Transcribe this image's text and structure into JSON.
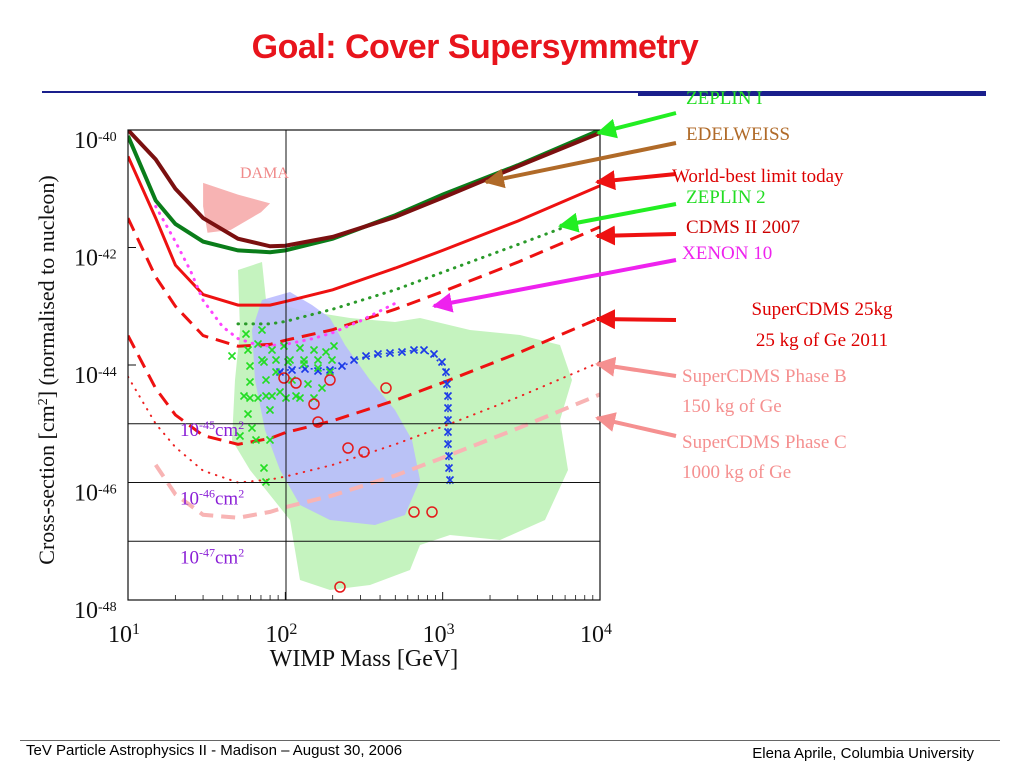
{
  "slide": {
    "title": "Goal: Cover Supersymmetry",
    "footer_left": "TeV Particle Astrophysics II - Madison –  August 30,  2006",
    "footer_right": "Elena Aprile, Columbia University"
  },
  "chart_data": {
    "type": "line",
    "xlabel": "WIMP Mass [GeV]",
    "ylabel_parts": [
      "Cross-section [cm",
      "2",
      "] (normalised to nucleon)"
    ],
    "x_scale": "log",
    "y_scale": "log",
    "xlim": [
      10,
      10000
    ],
    "ylim": [
      1e-48,
      1e-40
    ],
    "x_ticks": [
      {
        "value": 10,
        "base": "10",
        "exp": "1"
      },
      {
        "value": 100,
        "base": "10",
        "exp": "2"
      },
      {
        "value": 1000,
        "base": "10",
        "exp": "3"
      },
      {
        "value": 10000,
        "base": "10",
        "exp": "4"
      }
    ],
    "y_ticks": [
      {
        "value": 1e-40,
        "base": "10",
        "exp": "-40"
      },
      {
        "value": 1e-42,
        "base": "10",
        "exp": "-42"
      },
      {
        "value": 1e-44,
        "base": "10",
        "exp": "-44"
      },
      {
        "value": 1e-46,
        "base": "10",
        "exp": "-46"
      },
      {
        "value": 1e-48,
        "base": "10",
        "exp": "-48"
      }
    ],
    "series": [
      {
        "name": "ZEPLIN I",
        "color": "#0a7d1a",
        "label_color": "#22dd22",
        "style": "solid",
        "width": 4,
        "x": [
          10,
          15,
          20,
          30,
          50,
          80,
          100,
          200,
          500,
          1000,
          3000,
          10000
        ],
        "y": [
          -40.1,
          -41.2,
          -41.6,
          -41.9,
          -42.05,
          -42.08,
          -42.05,
          -41.85,
          -41.45,
          -41.1,
          -40.6,
          -40.0
        ]
      },
      {
        "name": "EDELWEISS",
        "color": "#7b1010",
        "label_color": "#b06a28",
        "style": "solid",
        "width": 4,
        "x": [
          10,
          15,
          20,
          30,
          50,
          80,
          100,
          200,
          500,
          1000,
          3000,
          10000
        ],
        "y": [
          -40.0,
          -40.5,
          -41.0,
          -41.5,
          -41.85,
          -41.98,
          -41.97,
          -41.82,
          -41.48,
          -41.15,
          -40.62,
          -40.05
        ]
      },
      {
        "name": "World-best limit today",
        "color": "#ee1111",
        "label_color": "#dd0000",
        "style": "solid",
        "width": 3,
        "x": [
          10,
          15,
          20,
          30,
          50,
          80,
          100,
          200,
          500,
          1000,
          3000,
          10000
        ],
        "y": [
          -40.45,
          -41.5,
          -42.3,
          -42.8,
          -42.98,
          -42.98,
          -42.92,
          -42.72,
          -42.35,
          -42.05,
          -41.55,
          -40.95
        ]
      },
      {
        "name": "ZEPLIN 2",
        "color": "#2a9a2a",
        "label_color": "#22dd22",
        "style": "dotted",
        "width": 3,
        "x": [
          50,
          80,
          100,
          200,
          500,
          1000,
          3000,
          6000
        ],
        "y": [
          -43.3,
          -43.3,
          -43.26,
          -43.05,
          -42.72,
          -42.42,
          -41.95,
          -41.65
        ]
      },
      {
        "name": "CDMS II 2007",
        "color": "#ee1111",
        "label_color": "#cc0000",
        "style": "dashed",
        "width": 3,
        "x": [
          10,
          15,
          20,
          30,
          50,
          80,
          100,
          200,
          500,
          1000,
          3000,
          10000
        ],
        "y": [
          -41.5,
          -42.5,
          -43.0,
          -43.5,
          -43.68,
          -43.65,
          -43.58,
          -43.4,
          -43.05,
          -42.75,
          -42.25,
          -41.65
        ]
      },
      {
        "name": "XENON 10",
        "color": "#ff44ff",
        "label_color": "#ee22ee",
        "style": "dotted",
        "width": 3,
        "x": [
          15,
          20,
          25,
          30,
          40,
          50,
          70,
          100,
          150,
          200,
          300,
          500
        ],
        "y": [
          -41.3,
          -41.9,
          -42.4,
          -42.9,
          -43.35,
          -43.55,
          -43.68,
          -43.65,
          -43.55,
          -43.45,
          -43.25,
          -42.95
        ]
      },
      {
        "name": "SuperCDMS 25kg",
        "color": "#ee1111",
        "label_color": "#dd0000",
        "style": "dashed",
        "width": 3,
        "x": [
          10,
          15,
          20,
          30,
          50,
          80,
          100,
          200,
          500,
          1000,
          3000,
          10000
        ],
        "y": [
          -43.5,
          -44.4,
          -44.85,
          -45.2,
          -45.35,
          -45.25,
          -45.15,
          -44.95,
          -44.6,
          -44.3,
          -43.8,
          -43.2
        ]
      },
      {
        "name": "SuperCDMS Phase B",
        "color": "#ee2222",
        "label_color": "#f59090",
        "style": "dotted",
        "width": 2,
        "x": [
          10,
          15,
          20,
          30,
          50,
          80,
          100,
          200,
          500,
          1000,
          3000,
          10000
        ],
        "y": [
          -44.2,
          -45.0,
          -45.4,
          -45.8,
          -46.0,
          -45.95,
          -45.9,
          -45.7,
          -45.35,
          -45.05,
          -44.55,
          -43.95
        ]
      },
      {
        "name": "SuperCDMS Phase C",
        "color": "#f8b4b4",
        "label_color": "#f59090",
        "style": "dashed",
        "width": 4,
        "x": [
          15,
          20,
          30,
          50,
          80,
          100,
          200,
          500,
          1000,
          3000,
          10000
        ],
        "y": [
          -45.7,
          -46.2,
          -46.55,
          -46.6,
          -46.5,
          -46.42,
          -46.22,
          -45.88,
          -45.58,
          -45.08,
          -44.5
        ]
      }
    ],
    "regions": [
      {
        "name": "DAMA",
        "color": "#f6a6a6",
        "label_color": "#f08a8a",
        "x": [
          30,
          50,
          80,
          70,
          45,
          32,
          30
        ],
        "y": [
          -40.9,
          -41.1,
          -41.25,
          -41.4,
          -41.7,
          -41.75,
          -41.3
        ]
      }
    ],
    "reference_lines": [
      {
        "label_base": "10",
        "label_exp": "-45",
        "label_unit": "cm",
        "label_unit_exp": "2",
        "y": -45
      },
      {
        "label_base": "10",
        "label_exp": "-46",
        "label_unit": "cm",
        "label_unit_exp": "2",
        "y": -46
      },
      {
        "label_base": "10",
        "label_exp": "-47",
        "label_unit": "cm",
        "label_unit_exp": "2",
        "y": -47
      }
    ],
    "annotations": [
      {
        "line1": "SuperCDMS 25kg",
        "line2": "25 kg of Ge 2011"
      },
      {
        "line1": "SuperCDMS Phase B",
        "line2": "150 kg of Ge"
      },
      {
        "line1": "SuperCDMS Phase C",
        "line2": "1000 kg of Ge"
      }
    ],
    "grid": false
  }
}
